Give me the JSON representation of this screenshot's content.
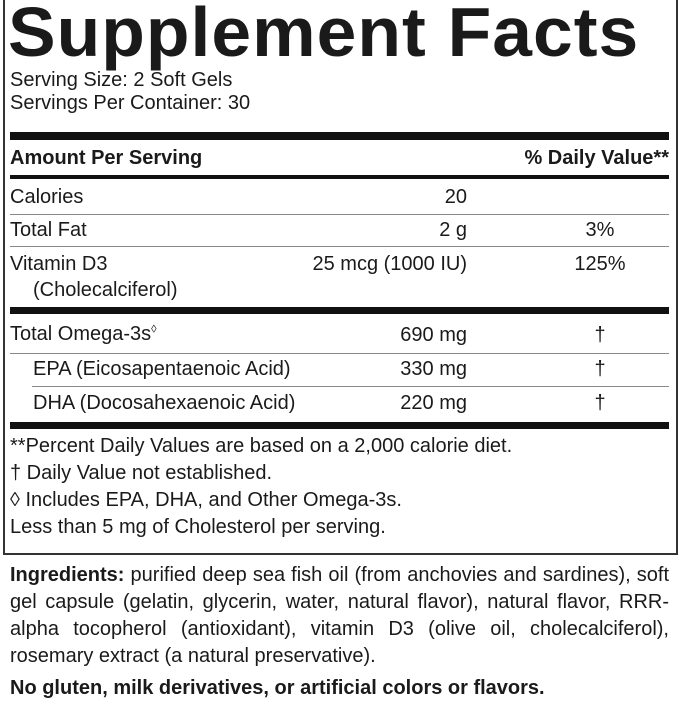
{
  "title": "Supplement Facts",
  "serving_size": "Serving Size: 2 Soft Gels",
  "servings_per_container": "Servings Per Container: 30",
  "header": {
    "amount": "Amount Per Serving",
    "dv": "% Daily Value**"
  },
  "rows": [
    {
      "name": "Calories",
      "amount": "20",
      "dv": ""
    },
    {
      "name": "Total Fat",
      "amount": "2 g",
      "dv": "3%"
    },
    {
      "name": "Vitamin D3",
      "sub": "(Cholecalciferol)",
      "amount": "25 mcg (1000 IU)",
      "dv": "125%"
    },
    {
      "name": "Total Omega-3s",
      "mark": "◊",
      "amount": "690 mg",
      "dv": "†"
    },
    {
      "name": "EPA (Eicosapentaenoic Acid)",
      "amount": "330 mg",
      "dv": "†"
    },
    {
      "name": "DHA (Docosahexaenoic Acid)",
      "amount": "220 mg",
      "dv": "†"
    }
  ],
  "footnotes": [
    "**Percent Daily Values are based on a 2,000 calorie diet.",
    "† Daily Value not established.",
    "◊ Includes EPA, DHA, and Other Omega-3s.",
    "Less than 5 mg of Cholesterol per serving."
  ],
  "ingredients": {
    "label": "Ingredients:",
    "text": " purified deep sea fish oil (from anchovies and sardines), soft gel capsule (gelatin, glycerin, water, natural flavor), natural flavor, RRR-alpha tocopherol (antioxidant), vitamin D3 (olive oil, cholecalciferol), rosemary extract (a natural preservative)."
  },
  "allergen_statement": "No gluten, milk derivatives, or artificial colors or flavors."
}
